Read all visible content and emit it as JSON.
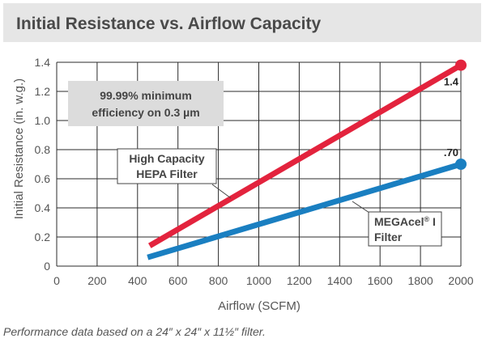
{
  "title": "Initial Resistance vs. Airflow Capacity",
  "footnote": "Performance data based on a 24″ x 24″ x 11½″ filter.",
  "colors": {
    "hepa": "#e3233d",
    "megacel": "#1a7fc1",
    "band": "#e6e6e6",
    "grid": "#2b2b2b"
  },
  "chart_data": {
    "type": "line",
    "xlabel": "Airflow (SCFM)",
    "ylabel": "Initial Resistance (in. w.g.)",
    "xlim": [
      0,
      2000
    ],
    "ylim": [
      0,
      1.4
    ],
    "x_ticks": [
      "0",
      "200",
      "400",
      "600",
      "800",
      "1000",
      "1200",
      "1400",
      "1600",
      "1800",
      "2000"
    ],
    "y_ticks": [
      "0",
      "0.2",
      "0.4",
      "0.6",
      "0.8",
      "1.0",
      "1.2",
      "1.4"
    ],
    "grid": true,
    "series": [
      {
        "name": "High Capacity HEPA Filter",
        "color": "#e3233d",
        "points": [
          [
            460,
            0.14
          ],
          [
            2000,
            1.38
          ]
        ],
        "end_label": "1.4"
      },
      {
        "name": "MEGAcel® I Filter",
        "color": "#1a7fc1",
        "points": [
          [
            450,
            0.06
          ],
          [
            2000,
            0.7
          ]
        ],
        "end_label": ".70"
      }
    ],
    "annotations": {
      "box_line1": "99.99% minimum",
      "box_line2": "efficiency on 0.3 µm",
      "hepa_line1": "High Capacity",
      "hepa_line2": "HEPA Filter",
      "megacel_line1": "MEGAcel",
      "megacel_sup": "®",
      "megacel_suffix": " I",
      "megacel_line2": "Filter"
    }
  }
}
